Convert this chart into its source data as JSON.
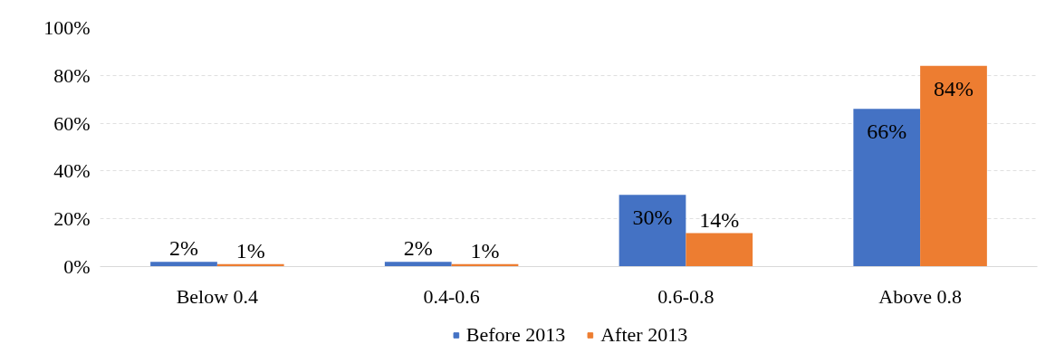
{
  "chart_data": {
    "type": "bar",
    "categories": [
      "Below 0.4",
      "0.4-0.6",
      "0.6-0.8",
      "Above 0.8"
    ],
    "series": [
      {
        "name": "Before 2013",
        "color": "#4472c4",
        "values": [
          2,
          2,
          30,
          66
        ],
        "value_labels": [
          "2%",
          "2%",
          "30%",
          "66%"
        ]
      },
      {
        "name": "After 2013",
        "color": "#ed7d31",
        "values": [
          1,
          1,
          14,
          84
        ],
        "value_labels": [
          "1%",
          "1%",
          "14%",
          "84%"
        ]
      }
    ],
    "ylim": [
      0,
      100
    ],
    "yticks": [
      {
        "value": 0,
        "label": "0%"
      },
      {
        "value": 20,
        "label": "20%"
      },
      {
        "value": 40,
        "label": "40%"
      },
      {
        "value": 60,
        "label": "60%"
      },
      {
        "value": 80,
        "label": "80%"
      },
      {
        "value": 100,
        "label": "100%"
      }
    ],
    "grid": "y",
    "legend": "bottom"
  }
}
